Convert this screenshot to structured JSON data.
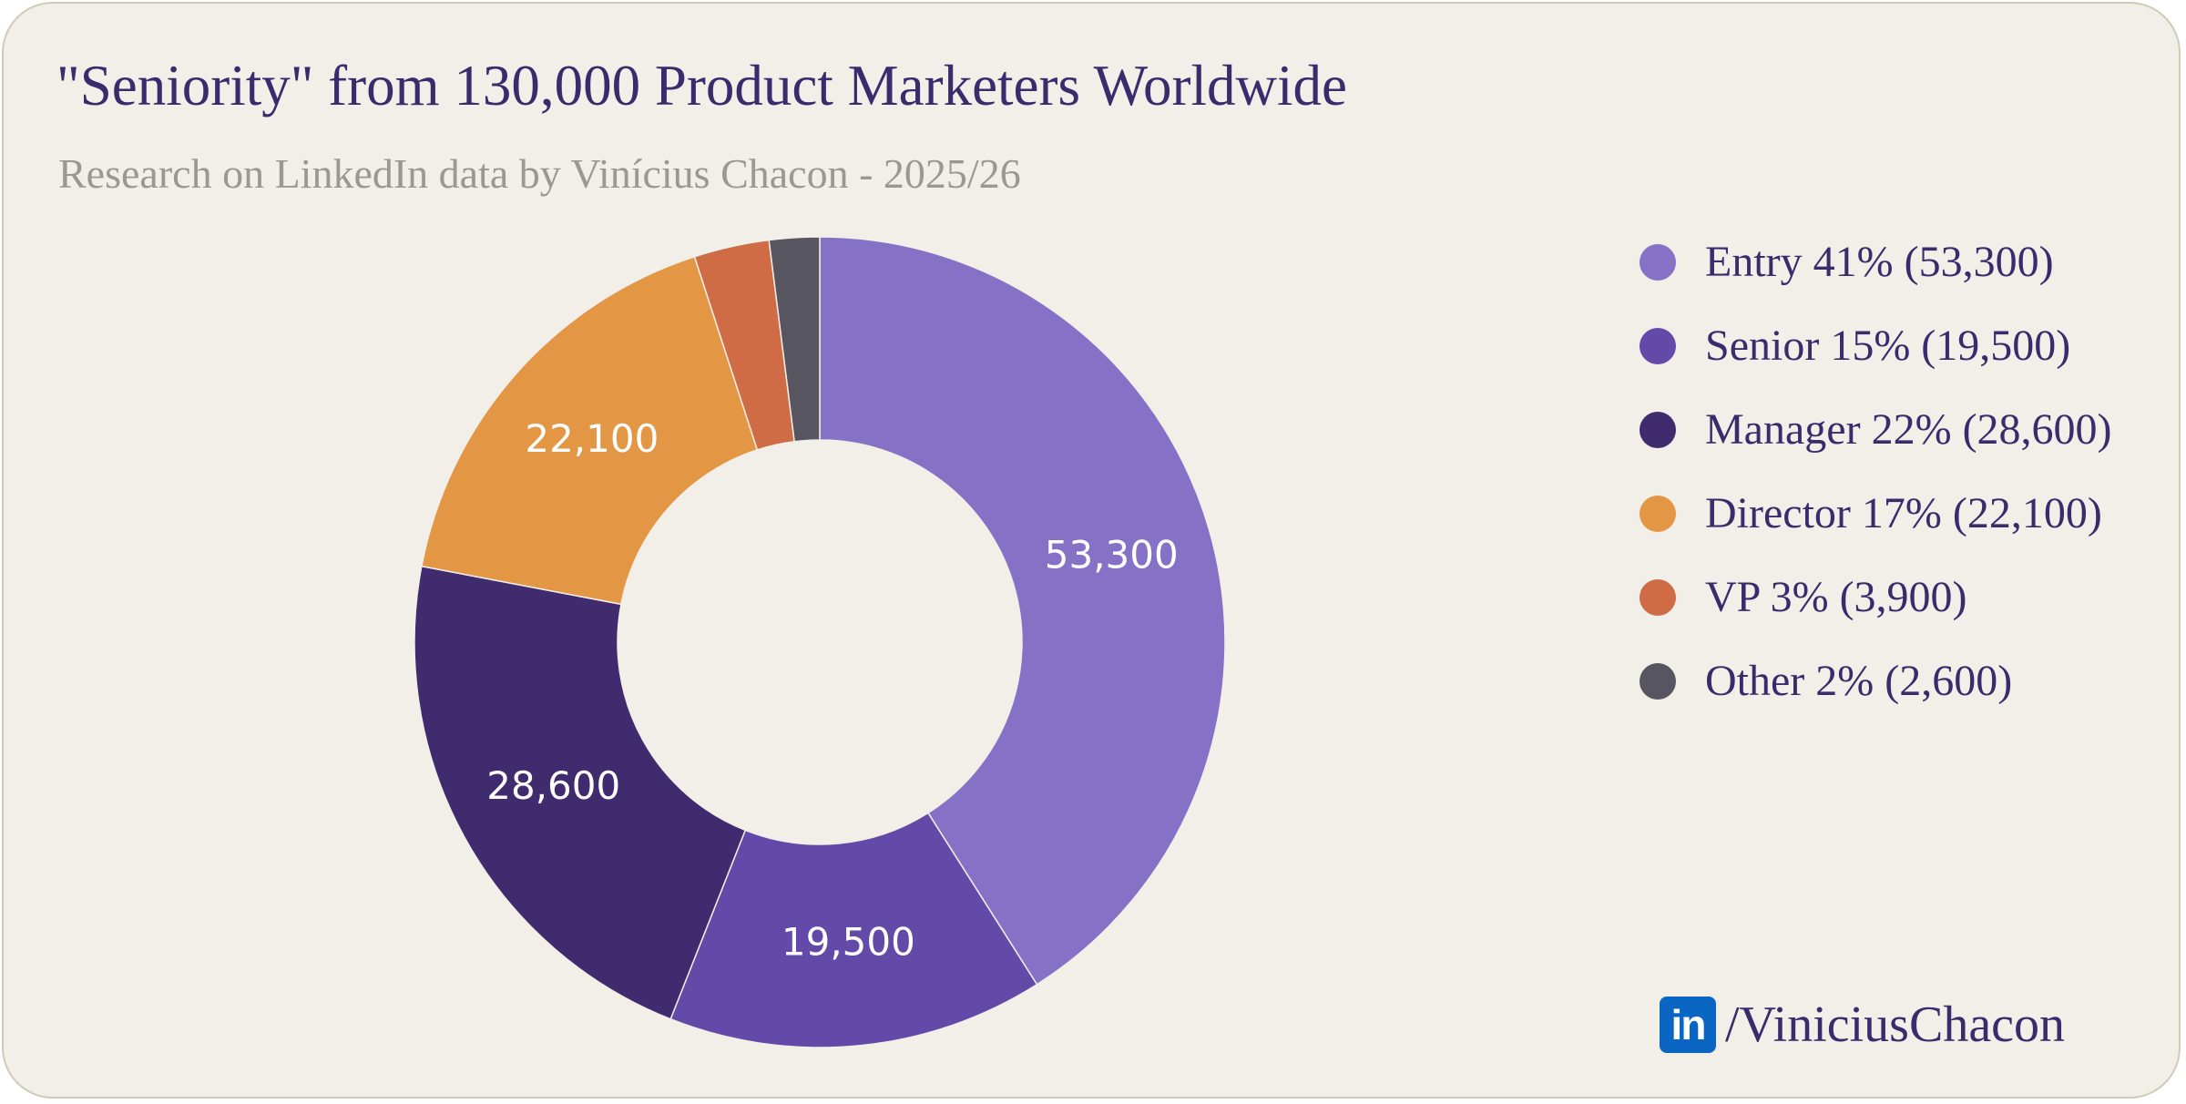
{
  "header": {
    "title": "\"Seniority\" from 130,000 Product Marketers Worldwide",
    "subtitle": "Research on LinkedIn data by Vinícius Chacon - 2025/26"
  },
  "chart_data": {
    "type": "pie",
    "donut": true,
    "title": "\"Seniority\" from 130,000 Product Marketers Worldwide",
    "subtitle": "Research on LinkedIn data by Vinícius Chacon - 2025/26",
    "legend_position": "right",
    "slices": [
      {
        "name": "Entry",
        "value": 53300,
        "percent": 41,
        "color": "#8571c5",
        "data_label": "53,300",
        "legend_label": "Entry 41% (53,300)"
      },
      {
        "name": "Senior",
        "value": 19500,
        "percent": 15,
        "color": "#6349a8",
        "data_label": "19,500",
        "legend_label": "Senior 15% (19,500)"
      },
      {
        "name": "Manager",
        "value": 28600,
        "percent": 22,
        "color": "#3f2b6d",
        "data_label": "28,600",
        "legend_label": "Manager 22% (28,600)"
      },
      {
        "name": "Director",
        "value": 22100,
        "percent": 17,
        "color": "#e39744",
        "data_label": "22,100",
        "legend_label": "Director 17% (22,100)"
      },
      {
        "name": "VP",
        "value": 3900,
        "percent": 3,
        "color": "#cf6b45",
        "data_label": "",
        "legend_label": "VP 3% (3,900)"
      },
      {
        "name": "Other",
        "value": 2600,
        "percent": 2,
        "color": "#575560",
        "data_label": "",
        "legend_label": "Other 2% (2,600)"
      }
    ]
  },
  "footer": {
    "icon": "linkedin-icon",
    "icon_text": "in",
    "handle": "/ViniciusChacon",
    "brand_color": "#0a66c2"
  }
}
